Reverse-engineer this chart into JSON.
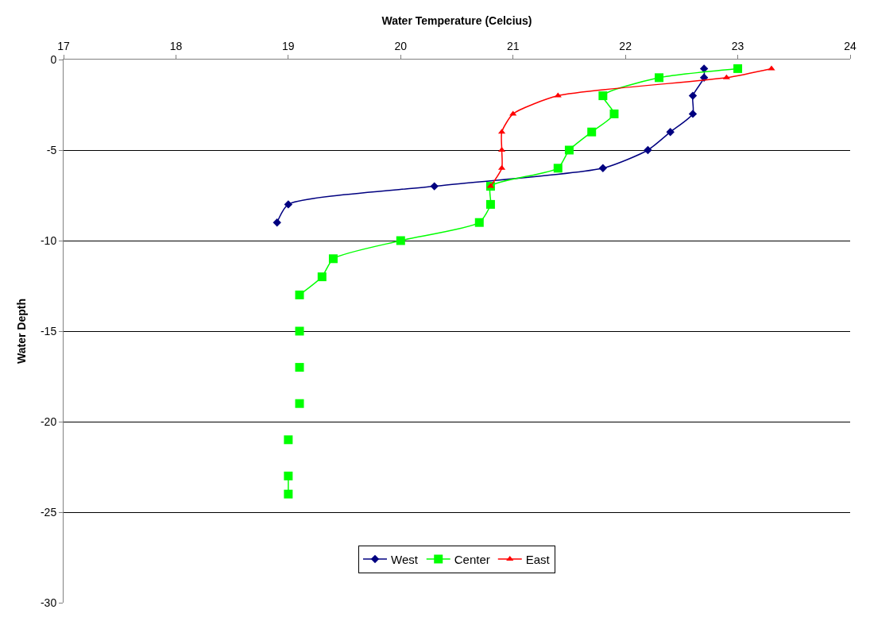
{
  "chart_data": {
    "type": "line",
    "xlabel": "Water Temperature (Celcius)",
    "ylabel": "Water Depth",
    "xlim": [
      17,
      24
    ],
    "xticks": [
      17,
      18,
      19,
      20,
      21,
      22,
      23,
      24
    ],
    "ylim": [
      -30,
      0
    ],
    "yticks": [
      -30,
      -25,
      -20,
      -15,
      -10,
      -5,
      0
    ],
    "grid": "y",
    "legend": "bottom",
    "line_style": "solid",
    "series": [
      {
        "name": "West",
        "color": "#000080",
        "marker": "diamond",
        "x": [
          22.7,
          22.7,
          22.6,
          22.6,
          22.4,
          22.2,
          21.8,
          20.3,
          19.0,
          18.9
        ],
        "values": [
          -0.5,
          -1,
          -2,
          -3,
          -4,
          -5,
          -6,
          -7,
          -8,
          -9
        ]
      },
      {
        "name": "Center",
        "color": "#00ff00",
        "marker": "square",
        "x": [
          23.0,
          22.3,
          21.8,
          21.9,
          21.7,
          21.5,
          21.4,
          20.8,
          20.8,
          20.7,
          20.0,
          19.4,
          19.3,
          19.1,
          null,
          19.1,
          null,
          19.1,
          null,
          19.1,
          null,
          19.0,
          null,
          19.0,
          19.0
        ],
        "values": [
          -0.5,
          -1,
          -2,
          -3,
          -4,
          -5,
          -6,
          -7,
          -8,
          -9,
          -10,
          -11,
          -12,
          -13,
          null,
          -15,
          null,
          -17,
          null,
          -19,
          null,
          -21,
          null,
          -23,
          -24
        ]
      },
      {
        "name": "East",
        "color": "#ff0000",
        "marker": "triangle",
        "x": [
          23.3,
          22.9,
          21.4,
          21.0,
          20.9,
          20.9,
          20.9,
          20.8
        ],
        "values": [
          -0.5,
          -1,
          -2,
          -3,
          -4,
          -5,
          -6,
          -7
        ]
      }
    ]
  }
}
